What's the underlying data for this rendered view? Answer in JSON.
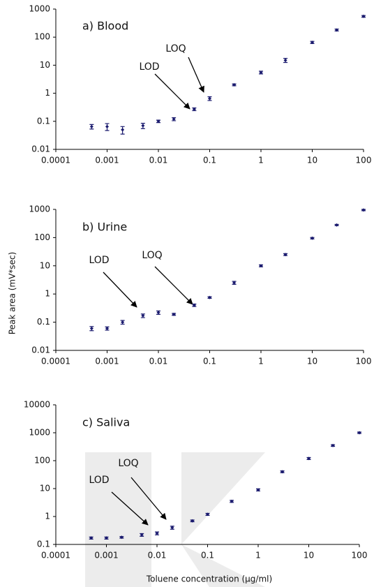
{
  "chart_data": [
    {
      "type": "scatter",
      "title": "a) Blood",
      "annotations": [
        "LOD",
        "LOQ"
      ],
      "log_x": true,
      "log_y": true,
      "color": "#1a1a6e",
      "x": [
        0.0005,
        0.001,
        0.002,
        0.005,
        0.01,
        0.02,
        0.05,
        0.1,
        0.3,
        1,
        3,
        10,
        30,
        100
      ],
      "values": [
        0.065,
        0.065,
        0.05,
        0.07,
        0.1,
        0.12,
        0.27,
        0.65,
        2,
        5.5,
        15,
        65,
        180,
        550
      ],
      "errors": [
        0.012,
        0.018,
        0.015,
        0.015,
        0.01,
        0.015,
        0.03,
        0.1,
        0.15,
        0.6,
        2.5,
        6,
        15,
        40
      ],
      "xlim": [
        0.0001,
        100
      ],
      "ylim": [
        0.01,
        1000
      ],
      "xticks": [
        0.0001,
        0.001,
        0.01,
        0.1,
        1,
        10,
        100
      ],
      "yticks": [
        0.01,
        0.1,
        1,
        10,
        100,
        1000
      ]
    },
    {
      "type": "scatter",
      "title": "b) Urine",
      "annotations": [
        "LOD",
        "LOQ"
      ],
      "ylabel": "Peak area (mV*sec)",
      "log_x": true,
      "log_y": true,
      "color": "#1a1a6e",
      "x": [
        0.0005,
        0.001,
        0.002,
        0.005,
        0.01,
        0.02,
        0.05,
        0.1,
        0.3,
        1,
        3,
        10,
        30,
        100
      ],
      "values": [
        0.06,
        0.06,
        0.1,
        0.17,
        0.22,
        0.19,
        0.4,
        0.75,
        2.5,
        10,
        25,
        95,
        280,
        950
      ],
      "errors": [
        0.01,
        0.008,
        0.015,
        0.025,
        0.03,
        0.015,
        0.04,
        0.05,
        0.3,
        0.8,
        2,
        6,
        15,
        50
      ],
      "xlim": [
        0.0001,
        100
      ],
      "ylim": [
        0.01,
        1000
      ],
      "xticks": [
        0.0001,
        0.001,
        0.01,
        0.1,
        1,
        10,
        100
      ],
      "yticks": [
        0.01,
        0.1,
        1,
        10,
        100,
        1000
      ]
    },
    {
      "type": "scatter",
      "title": "c) Saliva",
      "annotations": [
        "LOQ",
        "LOD"
      ],
      "xlabel": "Toluene concentration (µg/ml)",
      "log_x": true,
      "log_y": true,
      "color": "#1a1a6e",
      "x": [
        0.0005,
        0.001,
        0.002,
        0.005,
        0.01,
        0.02,
        0.05,
        0.1,
        0.3,
        1,
        3,
        10,
        30,
        100
      ],
      "values": [
        0.17,
        0.17,
        0.18,
        0.22,
        0.25,
        0.4,
        0.7,
        1.2,
        3.5,
        9,
        40,
        120,
        350,
        1000
      ],
      "errors": [
        0.015,
        0.015,
        0.012,
        0.025,
        0.03,
        0.05,
        0.05,
        0.1,
        0.3,
        0.8,
        3,
        10,
        25,
        60
      ],
      "xlim": [
        0.0001,
        100
      ],
      "ylim": [
        0.1,
        10000
      ],
      "xticks": [
        0.0001,
        0.001,
        0.01,
        0.1,
        1,
        10,
        100
      ],
      "yticks": [
        0.1,
        1,
        10,
        100,
        1000,
        10000
      ]
    }
  ]
}
